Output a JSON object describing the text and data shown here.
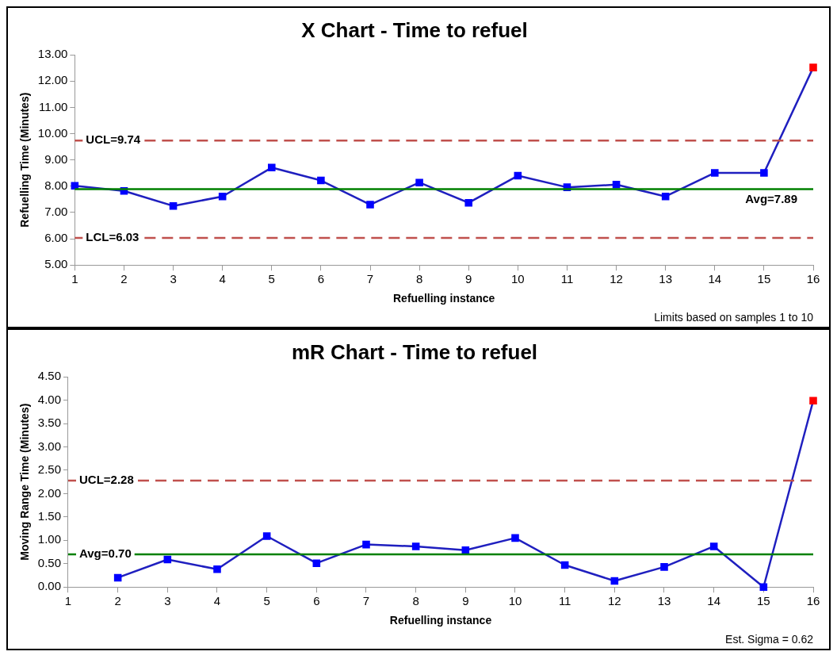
{
  "chart_data": [
    {
      "type": "line",
      "title": "X Chart - Time to refuel",
      "xlabel": "Refuelling instance",
      "ylabel": "Refuelling Time (Minutes)",
      "x": [
        1,
        2,
        3,
        4,
        5,
        6,
        7,
        8,
        9,
        10,
        11,
        12,
        13,
        14,
        15,
        16
      ],
      "xlim": [
        1,
        16
      ],
      "xticks": [
        1,
        2,
        3,
        4,
        5,
        6,
        7,
        8,
        9,
        10,
        11,
        12,
        13,
        14,
        15,
        16
      ],
      "series": [
        {
          "color": "#1f1fbf",
          "values": [
            8.02,
            7.82,
            7.25,
            7.61,
            8.71,
            8.22,
            7.3,
            8.14,
            7.37,
            8.4,
            7.96,
            8.06,
            7.61,
            8.51,
            8.51,
            12.52
          ],
          "colors": [
            "#0000ff",
            "#0000ff",
            "#0000ff",
            "#0000ff",
            "#0000ff",
            "#0000ff",
            "#0000ff",
            "#0000ff",
            "#0000ff",
            "#0000ff",
            "#0000ff",
            "#0000ff",
            "#0000ff",
            "#0000ff",
            "#0000ff",
            "#ff0000"
          ]
        }
      ],
      "ylim": [
        5,
        13
      ],
      "yticks": [
        {
          "value": 5,
          "label": "5.00"
        },
        {
          "value": 6,
          "label": "6.00"
        },
        {
          "value": 7,
          "label": "7.00"
        },
        {
          "value": 8,
          "label": "8.00"
        },
        {
          "value": 9,
          "label": "9.00"
        },
        {
          "value": 10,
          "label": "10.00"
        },
        {
          "value": 11,
          "label": "11.00"
        },
        {
          "value": 12,
          "label": "12.00"
        },
        {
          "value": 13,
          "label": "13.00"
        }
      ],
      "ref_lines": [
        {
          "axis": "y",
          "value": 9.74,
          "label": "UCL=9.74",
          "color": "#c0504d",
          "line_style": "dashed"
        },
        {
          "axis": "y",
          "value": 7.89,
          "label": "Avg=7.89",
          "color": "#008000",
          "line_style": "solid"
        },
        {
          "axis": "y",
          "value": 6.03,
          "label": "LCL=6.03",
          "color": "#c0504d",
          "line_style": "dashed"
        }
      ],
      "annotations": [
        "Limits based on samples 1 to 10"
      ],
      "grid": false,
      "legend": false,
      "marker": "square",
      "line_style": "solid"
    },
    {
      "type": "line",
      "title": "mR Chart - Time to refuel",
      "xlabel": "Refuelling instance",
      "ylabel": "Moving Range Time (Minutes)",
      "xlim": [
        1,
        16
      ],
      "xticks": [
        1,
        2,
        3,
        4,
        5,
        6,
        7,
        8,
        9,
        10,
        11,
        12,
        13,
        14,
        15,
        16
      ],
      "series": [
        {
          "color": "#1f1fbf",
          "x": [
            2,
            3,
            4,
            5,
            6,
            7,
            8,
            9,
            10,
            11,
            12,
            13,
            14,
            15,
            16
          ],
          "values": [
            0.2,
            0.59,
            0.38,
            1.09,
            0.51,
            0.91,
            0.87,
            0.79,
            1.05,
            0.47,
            0.13,
            0.43,
            0.87,
            0.0,
            3.99
          ],
          "colors": [
            "#0000ff",
            "#0000ff",
            "#0000ff",
            "#0000ff",
            "#0000ff",
            "#0000ff",
            "#0000ff",
            "#0000ff",
            "#0000ff",
            "#0000ff",
            "#0000ff",
            "#0000ff",
            "#0000ff",
            "#0000ff",
            "#ff0000"
          ]
        }
      ],
      "ylim": [
        0,
        4.5
      ],
      "yticks": [
        {
          "value": 0,
          "label": "0.00"
        },
        {
          "value": 0.5,
          "label": "0.50"
        },
        {
          "value": 1,
          "label": "1.00"
        },
        {
          "value": 1.5,
          "label": "1.50"
        },
        {
          "value": 2,
          "label": "2.00"
        },
        {
          "value": 2.5,
          "label": "2.50"
        },
        {
          "value": 3,
          "label": "3.00"
        },
        {
          "value": 3.5,
          "label": "3.50"
        },
        {
          "value": 4,
          "label": "4.00"
        },
        {
          "value": 4.5,
          "label": "4.50"
        }
      ],
      "ref_lines": [
        {
          "axis": "y",
          "value": 2.28,
          "label": "UCL=2.28",
          "color": "#c0504d",
          "line_style": "dashed"
        },
        {
          "axis": "y",
          "value": 0.7,
          "label": "Avg=0.70",
          "color": "#008000",
          "line_style": "solid"
        }
      ],
      "annotations": [
        "Est. Sigma = 0.62"
      ],
      "grid": false,
      "legend": false,
      "marker": "square",
      "line_style": "solid"
    }
  ]
}
